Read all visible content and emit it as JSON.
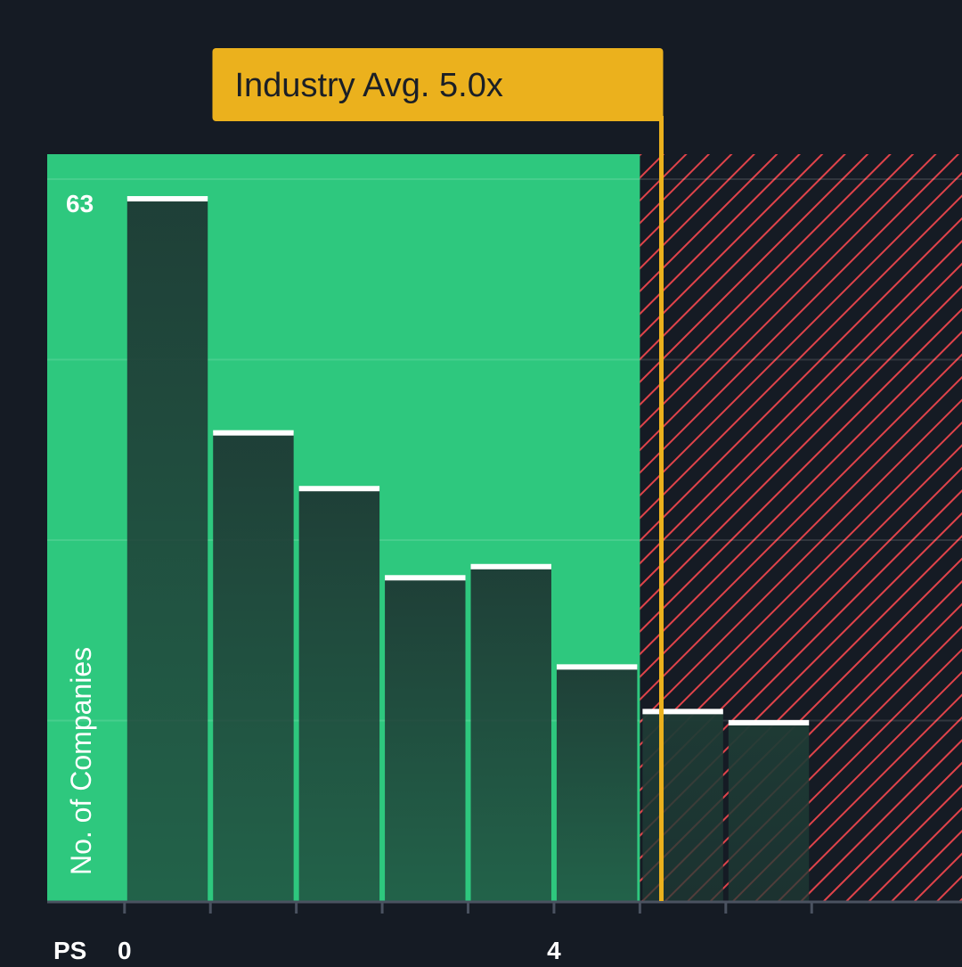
{
  "chart_data": {
    "type": "bar",
    "title": "",
    "xlabel": "PS",
    "ylabel": "No. of Companies",
    "x_axis_prefix": "PS",
    "bin_width": 0.8,
    "x_start": 0,
    "ylim": [
      0,
      67
    ],
    "xlim": [
      -0.72,
      7.8
    ],
    "y_top_label": "63",
    "tick_labels": [
      {
        "x": 0,
        "label": "0"
      },
      {
        "x": 4,
        "label": "4"
      }
    ],
    "values": [
      63,
      42,
      37,
      29,
      30,
      21,
      17,
      16
    ],
    "zones": [
      {
        "name": "below-average",
        "from": -0.72,
        "to": 4.8,
        "color": "#2ec87e"
      },
      {
        "name": "above-average",
        "from": 4.8,
        "to": 7.8,
        "color": "#e0434a"
      }
    ],
    "industry_average": {
      "value": 5.0,
      "label": "Industry Avg. 5.0x",
      "color": "#ebb11d"
    }
  },
  "colors": {
    "background": "#151b24",
    "bar_fill": "#1f3a33",
    "bar_top": "#ffffff",
    "axis": "#4a5260",
    "text": "#ffffff",
    "hatch": "#e0434a"
  }
}
